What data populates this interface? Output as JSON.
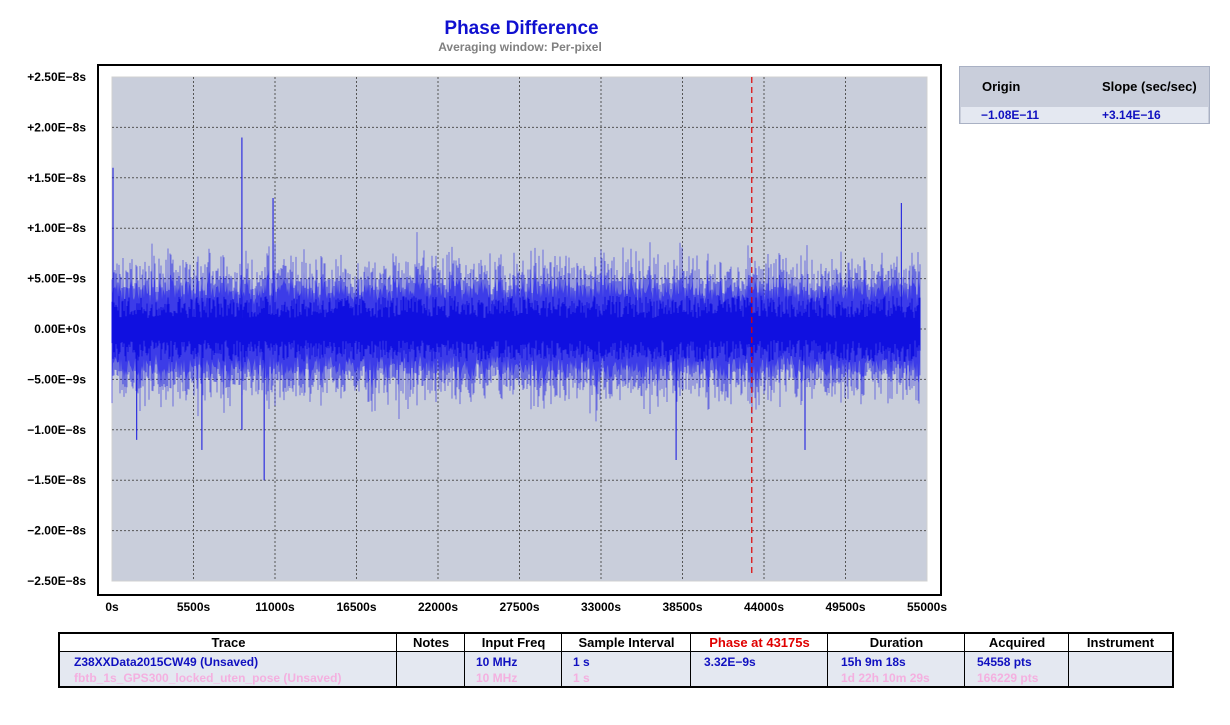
{
  "chart_data": {
    "type": "line",
    "title": "Phase Difference",
    "subtitle": "Averaging window: Per-pixel",
    "xlabel": "",
    "ylabel": "",
    "xlim": [
      0,
      55000
    ],
    "ylim": [
      -2.5e-08,
      2.5e-08
    ],
    "x_ticks": [
      "0s",
      "5500s",
      "11000s",
      "16500s",
      "22000s",
      "27500s",
      "33000s",
      "38500s",
      "44000s",
      "49500s",
      "55000s"
    ],
    "y_ticks": [
      "+2.50E−8s",
      "+2.00E−8s",
      "+1.50E−8s",
      "+1.00E−8s",
      "+5.00E−9s",
      "0.00E+0s",
      "−5.00E−9s",
      "−1.00E−8s",
      "−1.50E−8s",
      "−2.00E−8s",
      "−2.50E−8s"
    ],
    "grid": true,
    "marker_x": 43175,
    "series": [
      {
        "name": "Z38XXData2015CW49 (Unsaved)",
        "color": "#1010e0",
        "envelope_color": "#6b6bf0",
        "x_end": 54558,
        "spikes": [
          {
            "x": 0,
            "y": 1.6e-08
          },
          {
            "x": 8700,
            "y": 1.9e-08
          },
          {
            "x": 8700,
            "y": -1e-08
          },
          {
            "x": 10200,
            "y": -1.5e-08
          },
          {
            "x": 10800,
            "y": 1.3e-08
          },
          {
            "x": 1600,
            "y": -1.1e-08
          },
          {
            "x": 6000,
            "y": -1.2e-08
          },
          {
            "x": 38000,
            "y": -1.3e-08
          },
          {
            "x": 46700,
            "y": -1.2e-08
          },
          {
            "x": 53200,
            "y": 1.25e-08
          }
        ]
      }
    ],
    "bg_color": "#c9cedb"
  },
  "slope_panel": {
    "headers": [
      "Origin",
      "Slope (sec/sec)"
    ],
    "values": [
      "−1.08E−11",
      "+3.14E−16"
    ]
  },
  "trace_table": {
    "headers": [
      "Trace",
      "Notes",
      "Input Freq",
      "Sample Interval",
      "Phase at 43175s",
      "Duration",
      "Acquired",
      "Instrument"
    ],
    "rows": [
      [
        "Z38XXData2015CW49 (Unsaved)",
        "",
        "10 MHz",
        "1 s",
        "3.32E−9s",
        "15h 9m 18s",
        "54558 pts",
        ""
      ],
      [
        "fbtb_1s_GPS300_locked_uten_pose  (Unsaved)",
        "",
        "10 MHz",
        "1 s",
        "",
        "1d 22h 10m 29s",
        "166229 pts",
        ""
      ]
    ],
    "phase_header_color": "#e00000"
  }
}
